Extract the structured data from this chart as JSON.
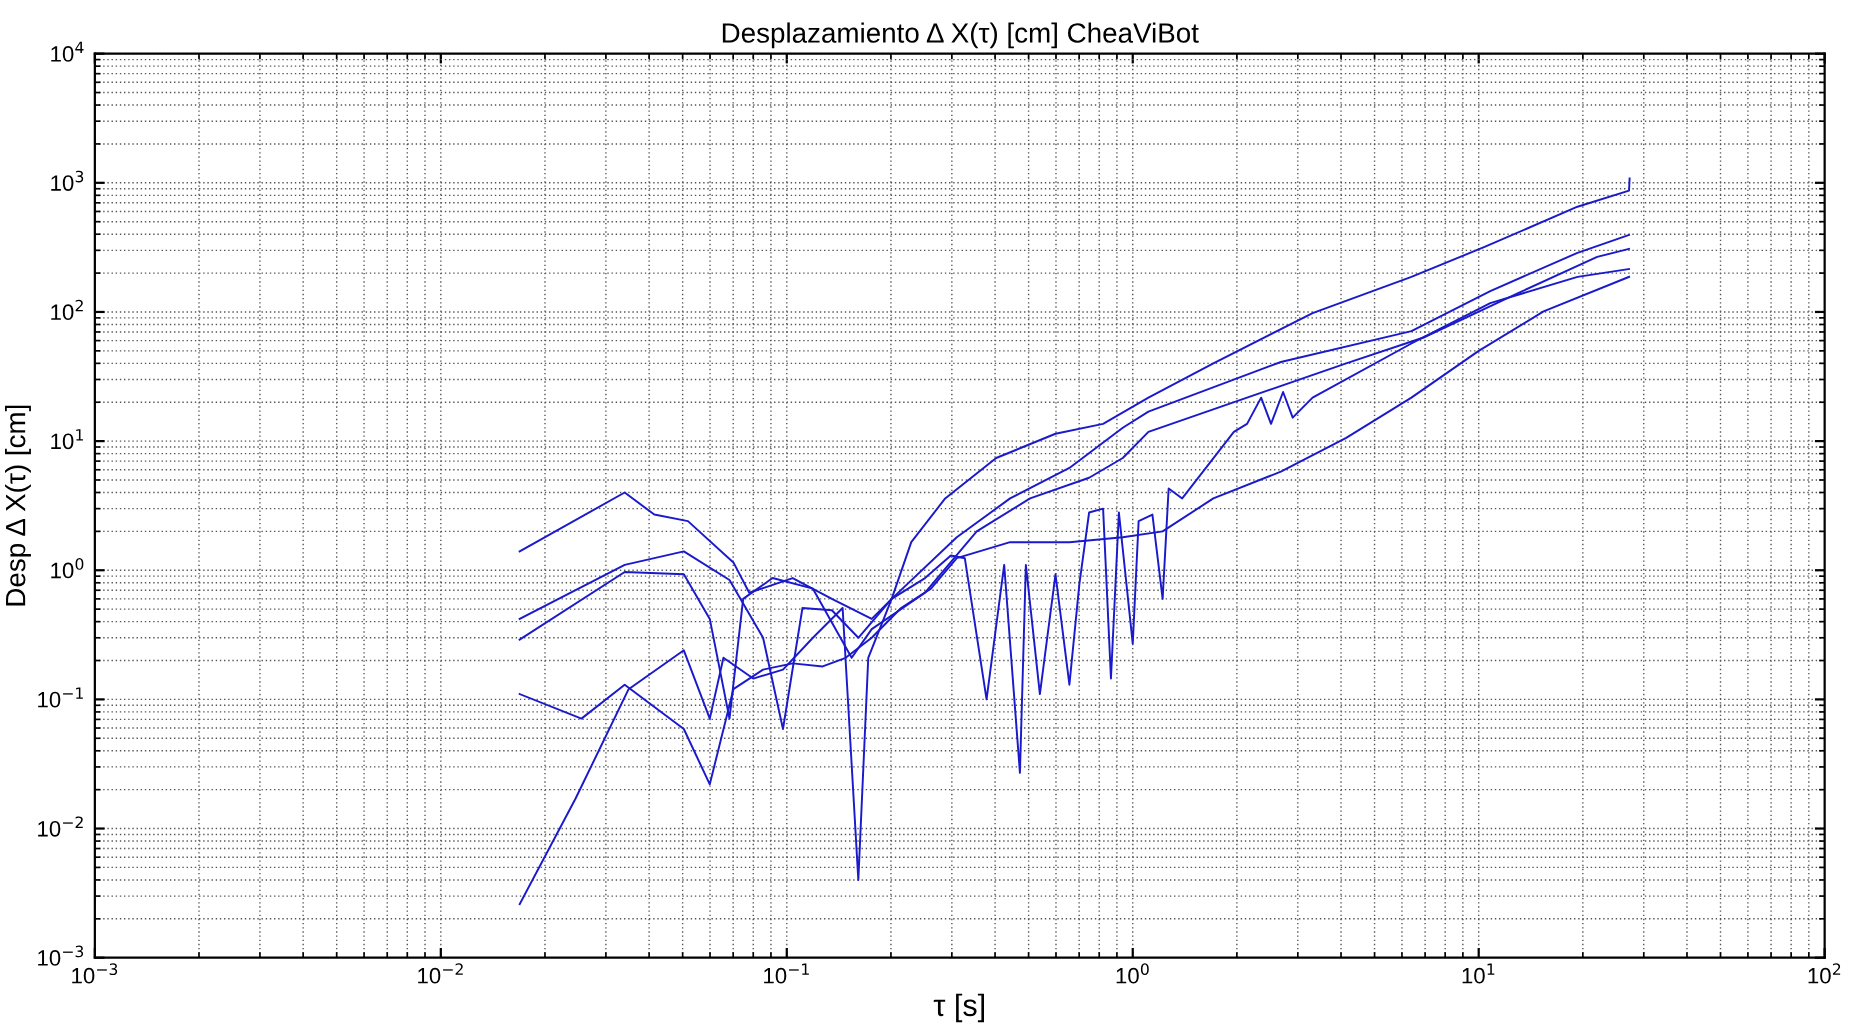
{
  "chart_data": {
    "type": "line",
    "title": "Desplazamiento Δ X(τ) [cm] CheaViBot",
    "xlabel": "τ [s]",
    "ylabel": "Desp Δ X(τ) [cm]",
    "log": "xy",
    "grid": true,
    "marker": "none",
    "line_style": "solid",
    "xlim": [
      0.001,
      100
    ],
    "ylim": [
      0.001,
      10000
    ],
    "xticks": [
      {
        "value": 0.001,
        "label": "10$^{−3}$"
      },
      {
        "value": 0.01,
        "label": "10$^{−2}$"
      },
      {
        "value": 0.1,
        "label": "10$^{−1}$"
      },
      {
        "value": 1,
        "label": "10$^{0}$"
      },
      {
        "value": 10,
        "label": "10$^{1}$"
      },
      {
        "value": 100,
        "label": "10$^{2}$"
      }
    ],
    "yticks": [
      {
        "value": 0.001,
        "label": "10$^{−3}$"
      },
      {
        "value": 0.01,
        "label": "10$^{−2}$"
      },
      {
        "value": 0.1,
        "label": "10$^{−1}$"
      },
      {
        "value": 1,
        "label": "10$^{0}$"
      },
      {
        "value": 10,
        "label": "10$^{1}$"
      },
      {
        "value": 100,
        "label": "10$^{2}$"
      },
      {
        "value": 1000,
        "label": "10$^{3}$"
      },
      {
        "value": 10000,
        "label": "10$^{4}$"
      }
    ],
    "series": [
      {
        "color": "#1a1acc",
        "x": [
          0.0169,
          0.034,
          0.0414,
          0.0518,
          0.0701,
          0.0779,
          0.104,
          0.135,
          0.176,
          0.201,
          0.229,
          0.287,
          0.403,
          0.598,
          0.821,
          1.11,
          1.71,
          3.31,
          6.39,
          10.4,
          19.3,
          27.2,
          27.3
        ],
        "values": [
          1.4,
          4.0,
          2.7,
          2.4,
          1.15,
          0.67,
          0.87,
          0.6,
          0.42,
          0.6,
          1.65,
          3.6,
          7.4,
          11.4,
          13.6,
          21.7,
          40,
          98,
          187,
          319,
          653,
          870,
          1080
        ]
      },
      {
        "color": "#1a1acc",
        "x": [
          0.0169,
          0.034,
          0.0504,
          0.0683,
          0.0854,
          0.0975,
          0.111,
          0.135,
          0.161,
          0.201,
          0.31,
          0.442,
          0.656,
          0.936,
          1.11,
          2.68,
          6.39,
          10.8,
          19.3,
          27.2
        ],
        "values": [
          0.42,
          1.1,
          1.4,
          0.84,
          0.3,
          0.059,
          0.51,
          0.49,
          0.3,
          0.6,
          1.8,
          3.6,
          6.2,
          12.7,
          16.9,
          41,
          71,
          145,
          287,
          395
        ]
      },
      {
        "color": "#1a1acc",
        "x": [
          0.0169,
          0.034,
          0.0504,
          0.0599,
          0.0683,
          0.0748,
          0.091,
          0.119,
          0.154,
          0.176,
          0.251,
          0.354,
          0.505,
          0.748,
          0.936,
          1.11,
          2.14,
          4.14,
          7.0,
          13.0,
          22.0,
          27.2
        ],
        "values": [
          0.29,
          0.97,
          0.93,
          0.42,
          0.071,
          0.6,
          0.87,
          0.72,
          0.21,
          0.35,
          0.67,
          2.0,
          3.6,
          5.2,
          7.4,
          11.8,
          21.7,
          40,
          64,
          140,
          267,
          308
        ]
      },
      {
        "color": "#1a1acc",
        "x": [
          0.0169,
          0.0245,
          0.0349,
          0.0504,
          0.0599,
          0.0656,
          0.08,
          0.0975,
          0.119,
          0.145,
          0.161,
          0.172,
          0.201,
          0.251,
          0.298,
          0.327,
          0.378,
          0.425,
          0.472,
          0.491,
          0.539,
          0.598,
          0.656,
          0.701,
          0.748,
          0.821,
          0.865,
          0.912,
          1.0,
          1.04,
          1.14,
          1.22,
          1.27,
          1.39,
          1.96,
          2.14,
          2.35,
          2.51,
          2.72,
          2.9,
          3.31,
          6.39,
          10.8,
          19.3,
          27.2
        ],
        "values": [
          0.0026,
          0.017,
          0.12,
          0.24,
          0.071,
          0.21,
          0.145,
          0.17,
          0.3,
          0.51,
          0.004,
          0.21,
          0.6,
          0.87,
          1.3,
          1.24,
          0.1,
          1.1,
          0.027,
          1.1,
          0.11,
          0.93,
          0.13,
          0.78,
          2.8,
          3.0,
          0.145,
          2.8,
          0.27,
          2.4,
          2.7,
          0.6,
          4.3,
          3.6,
          11.8,
          13.6,
          21.7,
          13.6,
          24,
          15.2,
          21.7,
          57,
          117,
          187,
          215
        ]
      },
      {
        "color": "#1a1acc",
        "x": [
          0.0169,
          0.0255,
          0.034,
          0.0504,
          0.0599,
          0.0701,
          0.0854,
          0.104,
          0.127,
          0.148,
          0.176,
          0.214,
          0.261,
          0.31,
          0.442,
          0.656,
          0.936,
          1.22,
          1.71,
          2.68,
          4.14,
          6.39,
          10.0,
          15.4,
          27.2
        ],
        "values": [
          0.11,
          0.071,
          0.13,
          0.059,
          0.022,
          0.12,
          0.17,
          0.19,
          0.18,
          0.21,
          0.3,
          0.51,
          0.72,
          1.24,
          1.65,
          1.65,
          1.8,
          2.0,
          3.6,
          5.8,
          10.6,
          21.7,
          50,
          101,
          187
        ]
      }
    ]
  }
}
